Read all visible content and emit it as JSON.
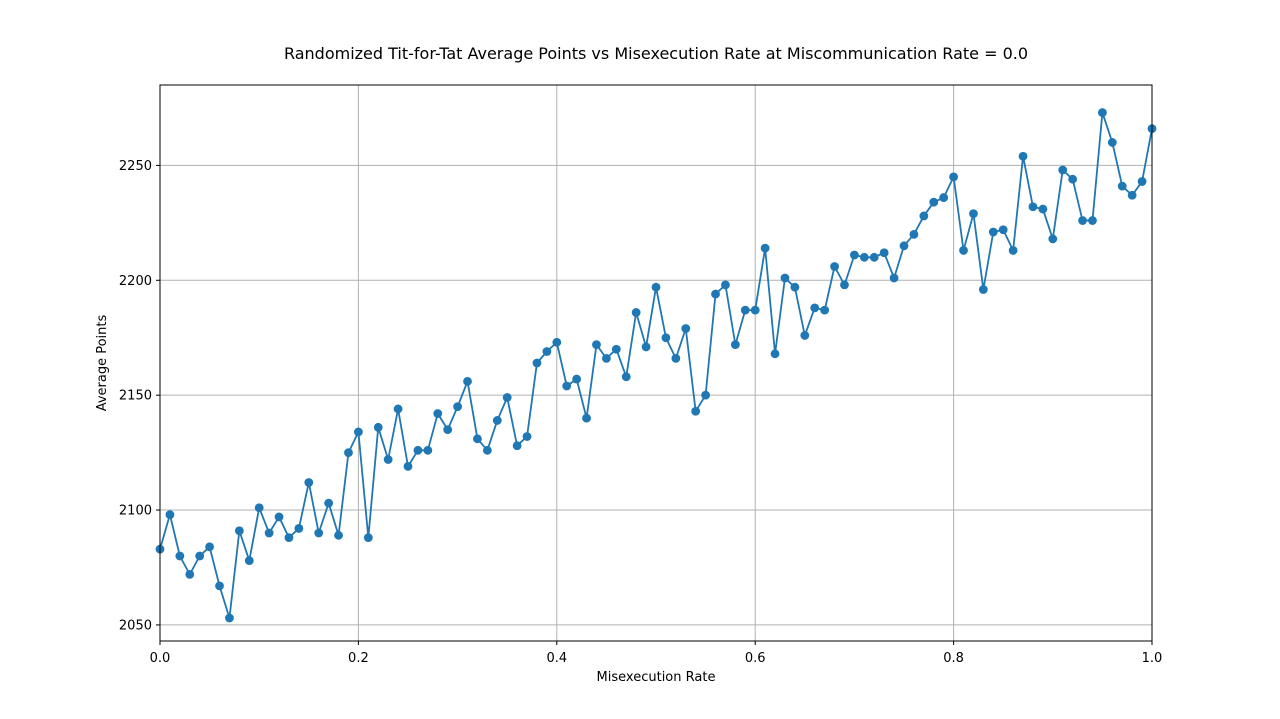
{
  "chart_data": {
    "type": "line",
    "title": "Randomized Tit-for-Tat Average Points vs Misexecution Rate at Miscommunication Rate = 0.0",
    "xlabel": "Misexecution Rate",
    "ylabel": "Average Points",
    "xlim": [
      0.0,
      1.0
    ],
    "ylim": [
      2043,
      2285
    ],
    "xticks": [
      0.0,
      0.2,
      0.4,
      0.6,
      0.8,
      1.0
    ],
    "xtick_labels": [
      "0.0",
      "0.2",
      "0.4",
      "0.6",
      "0.8",
      "1.0"
    ],
    "yticks": [
      2050,
      2100,
      2150,
      2200,
      2250
    ],
    "ytick_labels": [
      "2050",
      "2100",
      "2150",
      "2200",
      "2250"
    ],
    "grid": true,
    "marker": "circle",
    "color": "#1f77b4",
    "x": [
      0.0,
      0.01,
      0.02,
      0.03,
      0.04,
      0.05,
      0.06,
      0.07,
      0.08,
      0.09,
      0.1,
      0.11,
      0.12,
      0.13,
      0.14,
      0.15,
      0.16,
      0.17,
      0.18,
      0.19,
      0.2,
      0.21,
      0.22,
      0.23,
      0.24,
      0.25,
      0.26,
      0.27,
      0.28,
      0.29,
      0.3,
      0.31,
      0.32,
      0.33,
      0.34,
      0.35,
      0.36,
      0.37,
      0.38,
      0.39,
      0.4,
      0.41,
      0.42,
      0.43,
      0.44,
      0.45,
      0.46,
      0.47,
      0.48,
      0.49,
      0.5,
      0.51,
      0.52,
      0.53,
      0.54,
      0.55,
      0.56,
      0.57,
      0.58,
      0.59,
      0.6,
      0.61,
      0.62,
      0.63,
      0.64,
      0.65,
      0.66,
      0.67,
      0.68,
      0.69,
      0.7,
      0.71,
      0.72,
      0.73,
      0.74,
      0.75,
      0.76,
      0.77,
      0.78,
      0.79,
      0.8,
      0.81,
      0.82,
      0.83,
      0.84,
      0.85,
      0.86,
      0.87,
      0.88,
      0.89,
      0.9,
      0.91,
      0.92,
      0.93,
      0.94,
      0.95,
      0.96,
      0.97,
      0.98,
      0.99,
      1.0
    ],
    "y": [
      2083,
      2098,
      2080,
      2072,
      2080,
      2084,
      2067,
      2053,
      2091,
      2078,
      2101,
      2090,
      2097,
      2088,
      2092,
      2112,
      2090,
      2103,
      2089,
      2125,
      2134,
      2088,
      2136,
      2122,
      2144,
      2119,
      2126,
      2126,
      2142,
      2135,
      2145,
      2156,
      2131,
      2126,
      2139,
      2149,
      2128,
      2132,
      2164,
      2169,
      2173,
      2154,
      2157,
      2140,
      2172,
      2166,
      2170,
      2158,
      2186,
      2171,
      2197,
      2175,
      2166,
      2179,
      2143,
      2150,
      2194,
      2198,
      2172,
      2187,
      2187,
      2214,
      2168,
      2201,
      2197,
      2176,
      2188,
      2187,
      2206,
      2198,
      2211,
      2210,
      2210,
      2212,
      2201,
      2215,
      2220,
      2228,
      2234,
      2236,
      2245,
      2213,
      2229,
      2196,
      2221,
      2222,
      2213,
      2254,
      2232,
      2231,
      2218,
      2248,
      2244,
      2226,
      2226,
      2273,
      2260,
      2241,
      2237,
      2243,
      2266
    ]
  }
}
